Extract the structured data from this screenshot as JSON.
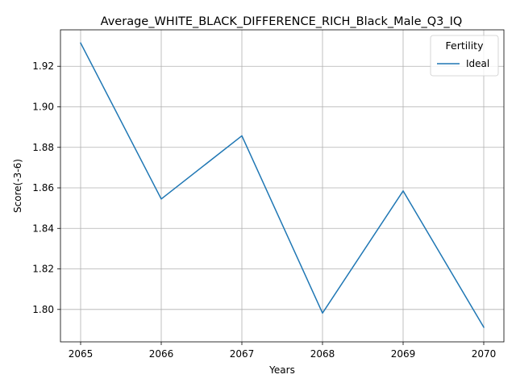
{
  "chart_data": {
    "type": "line",
    "title": "Average_WHITE_BLACK_DIFFERENCE_RICH_Black_Male_Q3_IQ",
    "xlabel": "Years",
    "ylabel": "Score(-3-6)",
    "x": [
      2065,
      2066,
      2067,
      2068,
      2069,
      2070
    ],
    "x_ticks": [
      "2065",
      "2066",
      "2067",
      "2068",
      "2069",
      "2070"
    ],
    "y_ticks": [
      "1.80",
      "1.82",
      "1.84",
      "1.86",
      "1.88",
      "1.90",
      "1.92"
    ],
    "xlim": [
      2064.75,
      2070.25
    ],
    "ylim": [
      1.784,
      1.938
    ],
    "grid": true,
    "legend": {
      "title": "Fertility",
      "placement": "top-right"
    },
    "series": [
      {
        "name": "Ideal",
        "color": "#1f77b4",
        "values": [
          1.9315,
          1.8545,
          1.8857,
          1.7982,
          1.8585,
          1.7912
        ]
      }
    ]
  }
}
